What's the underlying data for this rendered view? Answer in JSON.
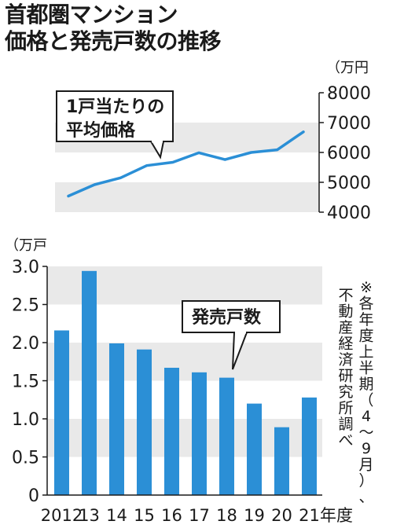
{
  "title": [
    "首都圏マンション",
    "価格と発売戸数の推移"
  ],
  "colors": {
    "bar": "#2b8fd6",
    "line": "#2b8fd6",
    "band": "#e9e9e9",
    "text": "#1a1a1a"
  },
  "chart_data": [
    {
      "type": "line",
      "unit": "（万円",
      "annotation": [
        "1戸当たりの",
        "平均価格"
      ],
      "x": [
        "2012",
        "13",
        "14",
        "15",
        "16",
        "17",
        "18",
        "19",
        "20",
        "21"
      ],
      "values": [
        4540,
        4920,
        5150,
        5560,
        5670,
        5990,
        5760,
        6000,
        6090,
        6690
      ],
      "ylim": [
        4000,
        8000
      ],
      "yticks": [
        "4000",
        "5000",
        "6000",
        "7000",
        "8000"
      ],
      "axis_side": "right",
      "grid": "alternating bands"
    },
    {
      "type": "bar",
      "unit": "（万戸",
      "annotation": [
        "発売戸数"
      ],
      "categories": [
        "2012",
        "13",
        "14",
        "15",
        "16",
        "17",
        "18",
        "19",
        "20",
        "21"
      ],
      "xlabel_suffix": "年度",
      "values": [
        2.16,
        2.94,
        1.99,
        1.91,
        1.67,
        1.61,
        1.54,
        1.2,
        0.89,
        1.28
      ],
      "ylim": [
        0,
        3
      ],
      "yticks": [
        "0",
        "0.5",
        "1.0",
        "1.5",
        "2.0",
        "2.5",
        "3.0"
      ],
      "grid": "alternating bands"
    }
  ],
  "note": [
    "※各年度上半期（4〜9月）、",
    "不動産経済研究所調べ"
  ]
}
